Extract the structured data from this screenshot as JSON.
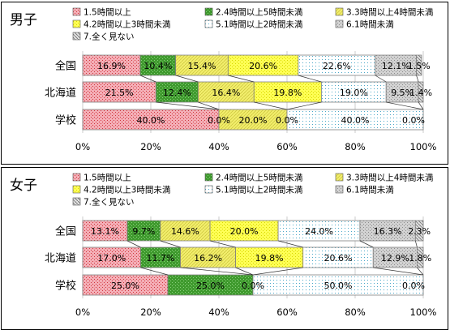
{
  "colors": {
    "c1": "#f4aeb6",
    "c1_dot": "#d0373e",
    "c2": "#3f9a2e",
    "c2_dot": "#8ad07c",
    "c3": "#f2ee6c",
    "c3_dot": "#c9c23a",
    "c4": "#ffff55",
    "c4_dot": "#d8d800",
    "c5": "#ffffff",
    "c5_dot": "#4aa8c8",
    "c6": "#d2d2d2",
    "c6_dot": "#8c8c8c",
    "c7": "#e2e2e2",
    "c7_dot": "#707070",
    "frame": "#000000",
    "grid": "#bfbfbf"
  },
  "chart_data": [
    {
      "type": "bar",
      "orientation": "horizontal-stacked-100",
      "title": "男子",
      "categories": [
        "全国",
        "北海道",
        "学校"
      ],
      "xlim": [
        0,
        100
      ],
      "xticks": [
        "0%",
        "20%",
        "40%",
        "60%",
        "80%",
        "100%"
      ],
      "legend": "top",
      "series": [
        {
          "name": "1.5時間以上",
          "values": [
            16.9,
            21.5,
            40.0
          ],
          "labels": [
            "16.9%",
            "21.5%",
            "40.0%"
          ]
        },
        {
          "name": "2.4時間以上5時間未満",
          "values": [
            10.4,
            12.4,
            0.0
          ],
          "labels": [
            "10.4%",
            "12.4%",
            "0.0%"
          ]
        },
        {
          "name": "3.3時間以上4時間未満",
          "values": [
            15.4,
            16.4,
            20.0
          ],
          "labels": [
            "15.4%",
            "16.4%",
            "20.0%"
          ]
        },
        {
          "name": "4.2時間以上3時間未満",
          "values": [
            20.6,
            19.8,
            0.0
          ],
          "labels": [
            "20.6%",
            "19.8%",
            "0.0%"
          ]
        },
        {
          "name": "5.1時間以上2時間未満",
          "values": [
            22.6,
            19.0,
            40.0
          ],
          "labels": [
            "22.6%",
            "19.0%",
            "40.0%"
          ]
        },
        {
          "name": "6.1時間未満",
          "values": [
            12.1,
            9.5,
            0.0
          ],
          "labels": [
            "12.1%",
            "9.5%",
            ""
          ]
        },
        {
          "name": "7.全く見ない",
          "values": [
            1.5,
            1.4,
            0.0
          ],
          "labels": [
            "1.5%",
            "1.4%",
            "0.0%"
          ]
        }
      ]
    },
    {
      "type": "bar",
      "orientation": "horizontal-stacked-100",
      "title": "女子",
      "categories": [
        "全国",
        "北海道",
        "学校"
      ],
      "xlim": [
        0,
        100
      ],
      "xticks": [
        "0%",
        "20%",
        "40%",
        "60%",
        "80%",
        "100%"
      ],
      "legend": "top",
      "series": [
        {
          "name": "1.5時間以上",
          "values": [
            13.1,
            17.0,
            25.0
          ],
          "labels": [
            "13.1%",
            "17.0%",
            "25.0%"
          ]
        },
        {
          "name": "2.4時間以上5時間未満",
          "values": [
            9.7,
            11.7,
            25.0
          ],
          "labels": [
            "9.7%",
            "11.7%",
            "25.0%"
          ]
        },
        {
          "name": "3.3時間以上4時間未満",
          "values": [
            14.6,
            16.2,
            0.0
          ],
          "labels": [
            "14.6%",
            "16.2%",
            "0.0%"
          ]
        },
        {
          "name": "4.2時間以上3時間未満",
          "values": [
            20.0,
            19.8,
            0.0
          ],
          "labels": [
            "20.0%",
            "19.8%",
            ""
          ]
        },
        {
          "name": "5.1時間以上2時間未満",
          "values": [
            24.0,
            20.6,
            50.0
          ],
          "labels": [
            "24.0%",
            "20.6%",
            "50.0%"
          ]
        },
        {
          "name": "6.1時間未満",
          "values": [
            16.3,
            12.9,
            0.0
          ],
          "labels": [
            "16.3%",
            "12.9%",
            ""
          ]
        },
        {
          "name": "7.全く見ない",
          "values": [
            2.3,
            1.8,
            0.0
          ],
          "labels": [
            "2.3%",
            "1.8%",
            "0.0%"
          ]
        }
      ]
    }
  ]
}
